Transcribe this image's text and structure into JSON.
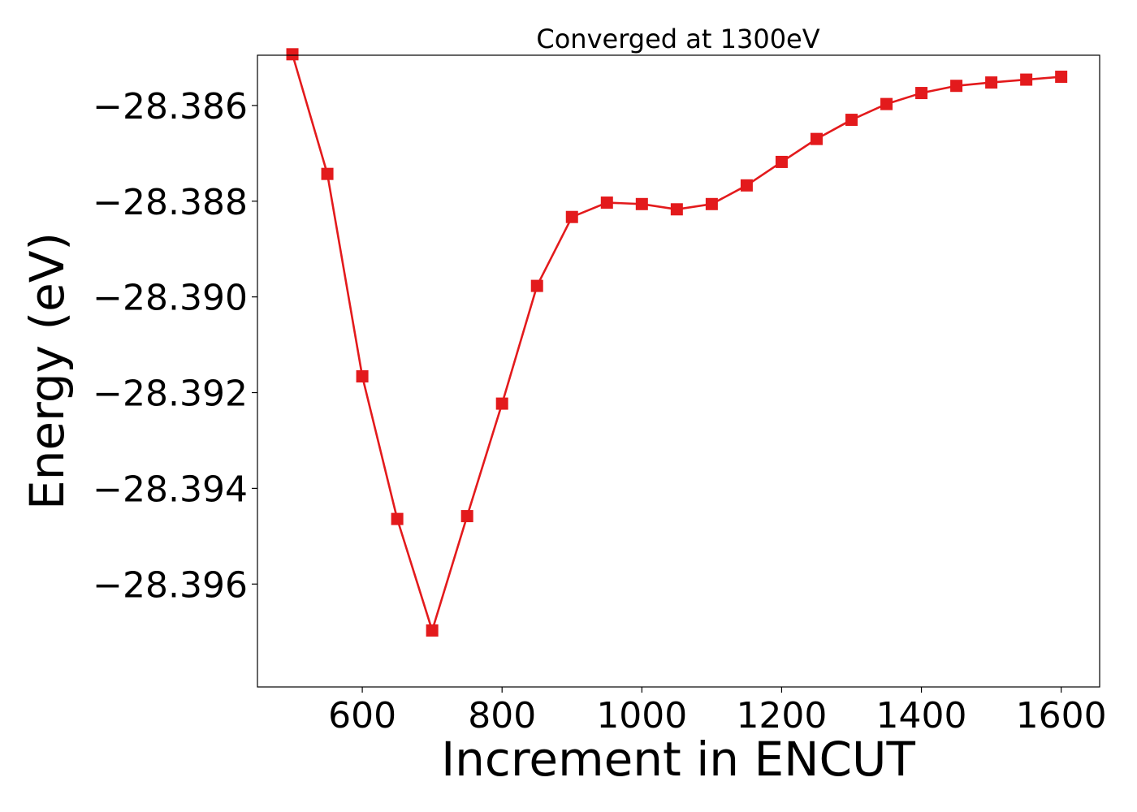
{
  "chart_data": {
    "type": "line",
    "title": "Converged at 1300eV",
    "xlabel": "Increment in ENCUT",
    "ylabel": "Energy (eV)",
    "xlim": [
      450,
      1655
    ],
    "ylim": [
      -28.39815,
      -28.38495
    ],
    "x_ticks": [
      600,
      800,
      1000,
      1200,
      1400,
      1600
    ],
    "x_tick_labels": [
      "600",
      "800",
      "1000",
      "1200",
      "1400",
      "1600"
    ],
    "y_ticks": [
      -28.386,
      -28.388,
      -28.39,
      -28.392,
      -28.394,
      -28.396
    ],
    "y_tick_labels": [
      "−28.386",
      "−28.388",
      "−28.390",
      "−28.392",
      "−28.394",
      "−28.396"
    ],
    "grid": false,
    "legend": "none",
    "series": [
      {
        "color": "#e31a1c",
        "marker": "square",
        "x": [
          500,
          550,
          600,
          650,
          700,
          750,
          800,
          850,
          900,
          950,
          1000,
          1050,
          1100,
          1150,
          1200,
          1250,
          1300,
          1350,
          1400,
          1450,
          1500,
          1550,
          1600
        ],
        "y": [
          -28.38493,
          -28.38743,
          -28.39166,
          -28.39464,
          -28.39697,
          -28.39458,
          -28.39223,
          -28.38977,
          -28.38833,
          -28.38803,
          -28.38806,
          -28.38817,
          -28.38806,
          -28.38767,
          -28.38718,
          -28.3867,
          -28.3863,
          -28.38597,
          -28.38574,
          -28.38559,
          -28.38552,
          -28.38546,
          -28.3854
        ]
      }
    ]
  }
}
